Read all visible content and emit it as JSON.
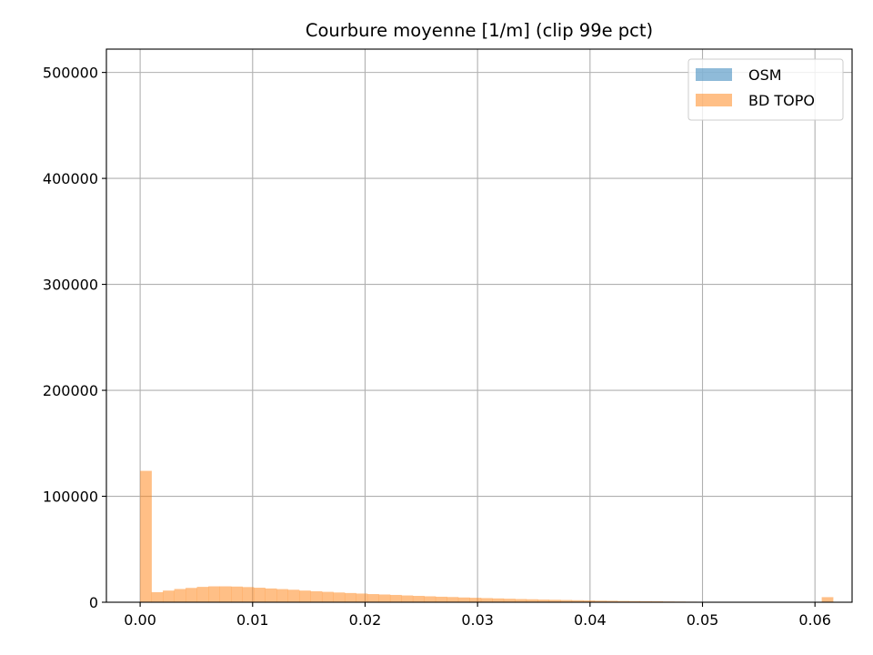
{
  "chart_data": {
    "type": "histogram",
    "title": "Courbure moyenne [1/m] (clip 99e pct)",
    "xlabel": "",
    "ylabel": "",
    "xlim": [
      -0.003,
      0.0633
    ],
    "ylim": [
      0,
      522000
    ],
    "x_ticks": [
      "0.00",
      "0.01",
      "0.02",
      "0.03",
      "0.04",
      "0.05",
      "0.06"
    ],
    "y_ticks": [
      "0",
      "100000",
      "200000",
      "300000",
      "400000",
      "500000"
    ],
    "grid": true,
    "legend_position": "top-right",
    "bin_edges_start": 0.0,
    "bin_width": 0.00101,
    "series": [
      {
        "name": "OSM",
        "color": "#1f77b4",
        "alpha": 0.5,
        "values": []
      },
      {
        "name": "BD TOPO",
        "color": "#ff7f0e",
        "alpha": 0.5,
        "values": [
          124000,
          9500,
          11000,
          12500,
          13500,
          14500,
          15000,
          15000,
          14800,
          14300,
          13700,
          13000,
          12400,
          11800,
          11000,
          10400,
          9800,
          9200,
          8700,
          8200,
          7700,
          7300,
          6900,
          6400,
          6000,
          5600,
          5200,
          4900,
          4500,
          4200,
          3900,
          3600,
          3300,
          3000,
          2800,
          2500,
          2300,
          2100,
          1900,
          1700,
          1500,
          1400,
          1200,
          1100,
          1000,
          900,
          700,
          600,
          500,
          400,
          400,
          300,
          300,
          200,
          200,
          200,
          100,
          100,
          100,
          100,
          4800
        ]
      }
    ]
  }
}
